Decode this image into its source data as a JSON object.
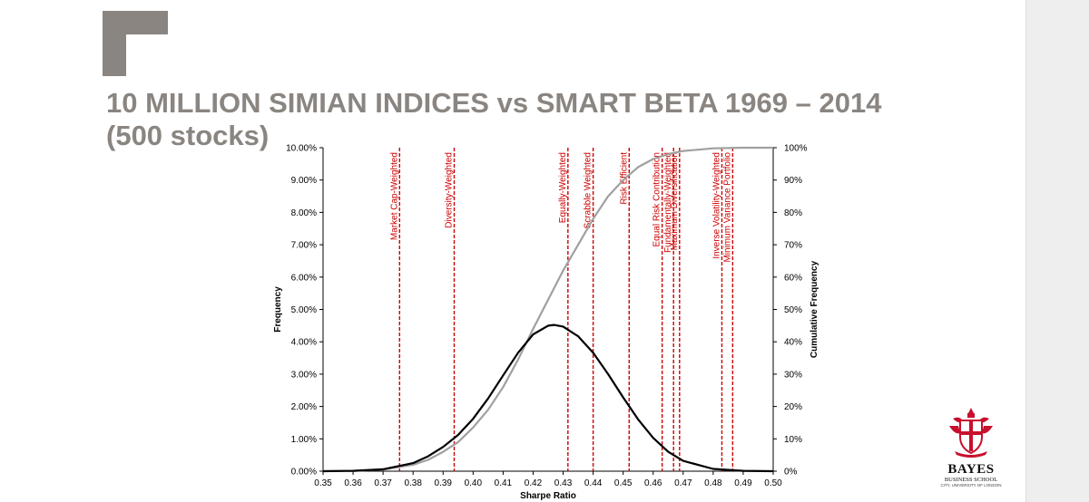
{
  "slide": {
    "title": "10 MILLION SIMIAN INDICES vs SMART BETA 1969 – 2014 (500 stocks)",
    "logo": {
      "name": "BAYES",
      "subtitle": "BUSINESS SCHOOL",
      "affiliation": "CITY, UNIVERSITY OF LONDON"
    },
    "colors": {
      "title": "#8a8580",
      "corner_mark": "#8a8580",
      "frequency_line": "#000000",
      "cumulative_line": "#a0a0a0",
      "marker_line": "#cc0000",
      "marker_text": "#cc0000"
    }
  },
  "chart_data": {
    "type": "line",
    "xlabel": "Sharpe Ratio",
    "ylabel": "Frequency",
    "y2label": "Cumulative Frequency",
    "xlim": [
      0.35,
      0.5
    ],
    "ylim": [
      0,
      0.1
    ],
    "y2lim": [
      0,
      1.0
    ],
    "x_ticks": [
      "0.35",
      "0.36",
      "0.37",
      "0.38",
      "0.39",
      "0.40",
      "0.41",
      "0.42",
      "0.43",
      "0.44",
      "0.45",
      "0.46",
      "0.47",
      "0.48",
      "0.49",
      "0.50"
    ],
    "y_ticks": [
      "0.00%",
      "1.00%",
      "2.00%",
      "3.00%",
      "4.00%",
      "5.00%",
      "6.00%",
      "7.00%",
      "8.00%",
      "9.00%",
      "10.00%"
    ],
    "y2_ticks": [
      "0%",
      "10%",
      "20%",
      "30%",
      "40%",
      "50%",
      "60%",
      "70%",
      "80%",
      "90%",
      "100%"
    ],
    "grid": false,
    "legend": "none",
    "series": [
      {
        "axis": "left",
        "x": [
          0.35,
          0.36,
          0.37,
          0.38,
          0.385,
          0.39,
          0.395,
          0.4,
          0.405,
          0.41,
          0.415,
          0.42,
          0.425,
          0.427,
          0.43,
          0.435,
          0.44,
          0.445,
          0.45,
          0.455,
          0.46,
          0.465,
          0.47,
          0.48,
          0.49,
          0.5
        ],
        "y": [
          0.0,
          0.0001,
          0.0006,
          0.0025,
          0.0046,
          0.0075,
          0.0112,
          0.0162,
          0.0225,
          0.0296,
          0.0366,
          0.0423,
          0.045,
          0.0452,
          0.0447,
          0.0417,
          0.0366,
          0.03,
          0.0228,
          0.016,
          0.0103,
          0.006,
          0.0032,
          0.0007,
          0.0001,
          0.0
        ]
      },
      {
        "axis": "right",
        "x": [
          0.35,
          0.36,
          0.37,
          0.38,
          0.385,
          0.39,
          0.395,
          0.4,
          0.405,
          0.41,
          0.415,
          0.42,
          0.425,
          0.43,
          0.435,
          0.44,
          0.445,
          0.45,
          0.455,
          0.46,
          0.465,
          0.47,
          0.48,
          0.49,
          0.5
        ],
        "y": [
          0.0,
          0.001,
          0.005,
          0.02,
          0.035,
          0.06,
          0.09,
          0.135,
          0.19,
          0.26,
          0.345,
          0.44,
          0.53,
          0.62,
          0.7,
          0.78,
          0.85,
          0.9,
          0.94,
          0.965,
          0.98,
          0.99,
          0.998,
          1.0,
          1.0
        ]
      }
    ],
    "markers": [
      {
        "x": 0.3755,
        "label": "Market Cap-Weighted"
      },
      {
        "x": 0.3937,
        "label": "Diversity-Weighted"
      },
      {
        "x": 0.4316,
        "label": "Equally-Weighted"
      },
      {
        "x": 0.44,
        "label": "Scrabble Weighted"
      },
      {
        "x": 0.452,
        "label": "Risk Efficient"
      },
      {
        "x": 0.463,
        "label": "Equal Risk Contribution"
      },
      {
        "x": 0.4668,
        "label": "Fundamentally-Weighted"
      },
      {
        "x": 0.4688,
        "label": "Maximum Diversification"
      },
      {
        "x": 0.4829,
        "label": "Inverse Volatility-Weighted"
      },
      {
        "x": 0.4865,
        "label": "Minimum Variance Portfolio"
      }
    ]
  }
}
